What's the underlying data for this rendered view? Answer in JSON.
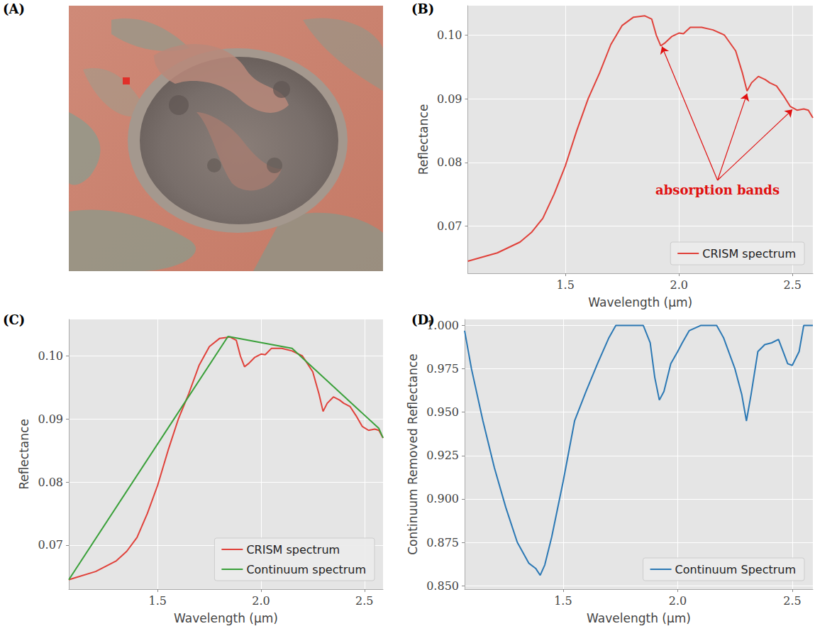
{
  "chart_data": [
    {
      "type": "image",
      "panel_label": "(A)"
    },
    {
      "type": "line",
      "panel_label": "(B)",
      "xlabel": "Wavelength (μm)",
      "ylabel": "Reflectance",
      "xlim": [
        1.07,
        2.59
      ],
      "ylim": [
        0.0626,
        0.1046
      ],
      "xticks": [
        1.5,
        {
          "value": 2.0,
          "label": "2.0"
        },
        2.5
      ],
      "yticks": [
        0.07,
        0.08,
        0.09,
        {
          "value": 0.1,
          "label": "0.10"
        }
      ],
      "grid": true,
      "legend": "lower right",
      "series": [
        {
          "name": "CRISM spectrum",
          "color": "#e0413a",
          "x": [
            1.07,
            1.1,
            1.2,
            1.3,
            1.35,
            1.4,
            1.45,
            1.5,
            1.55,
            1.6,
            1.65,
            1.7,
            1.75,
            1.8,
            1.85,
            1.88,
            1.9,
            1.92,
            1.94,
            1.97,
            2.0,
            2.02,
            2.05,
            2.1,
            2.15,
            2.2,
            2.25,
            2.28,
            2.3,
            2.32,
            2.35,
            2.38,
            2.4,
            2.43,
            2.46,
            2.49,
            2.52,
            2.55,
            2.57,
            2.59
          ],
          "values": [
            0.0645,
            0.0648,
            0.0658,
            0.0675,
            0.069,
            0.0712,
            0.075,
            0.0795,
            0.085,
            0.09,
            0.094,
            0.0985,
            0.1015,
            0.1028,
            0.103,
            0.1025,
            0.1,
            0.0983,
            0.0988,
            0.0998,
            0.1003,
            0.1002,
            0.1012,
            0.1012,
            0.1008,
            0.1,
            0.0975,
            0.094,
            0.0912,
            0.0925,
            0.0935,
            0.093,
            0.0925,
            0.092,
            0.0905,
            0.0888,
            0.0882,
            0.0884,
            0.0882,
            0.087
          ]
        }
      ],
      "annotations": [
        {
          "text": "absorption bands",
          "color": "#e01010",
          "x": 2.17,
          "y": 0.0757,
          "arrow_from": [
            2.17,
            0.0772
          ],
          "arrows_to": [
            [
              1.925,
              0.0982
            ],
            [
              2.3,
              0.0908
            ],
            [
              2.5,
              0.0883
            ]
          ]
        }
      ]
    },
    {
      "type": "line",
      "panel_label": "(C)",
      "xlabel": "Wavelength (μm)",
      "ylabel": "Reflectance",
      "xlim": [
        1.07,
        2.59
      ],
      "ylim": [
        0.063,
        0.1058
      ],
      "xticks": [
        1.5,
        {
          "value": 2.0,
          "label": "2.0"
        },
        2.5
      ],
      "yticks": [
        0.07,
        0.08,
        0.09,
        {
          "value": 0.1,
          "label": "0.10"
        }
      ],
      "grid": true,
      "legend": "lower right",
      "series": [
        {
          "name": "CRISM spectrum",
          "color": "#e0413a",
          "x": [
            1.07,
            1.1,
            1.2,
            1.3,
            1.35,
            1.4,
            1.45,
            1.5,
            1.55,
            1.6,
            1.65,
            1.7,
            1.75,
            1.8,
            1.85,
            1.88,
            1.9,
            1.92,
            1.94,
            1.97,
            2.0,
            2.02,
            2.05,
            2.1,
            2.15,
            2.2,
            2.25,
            2.28,
            2.3,
            2.32,
            2.35,
            2.38,
            2.4,
            2.43,
            2.46,
            2.49,
            2.52,
            2.55,
            2.57,
            2.59
          ],
          "values": [
            0.0645,
            0.0648,
            0.0658,
            0.0675,
            0.069,
            0.0712,
            0.075,
            0.0795,
            0.085,
            0.09,
            0.094,
            0.0985,
            0.1015,
            0.1028,
            0.103,
            0.1025,
            0.1,
            0.0983,
            0.0988,
            0.0998,
            0.1003,
            0.1002,
            0.1012,
            0.1012,
            0.1008,
            0.1,
            0.0975,
            0.094,
            0.0912,
            0.0925,
            0.0935,
            0.093,
            0.0925,
            0.092,
            0.0905,
            0.0888,
            0.0882,
            0.0884,
            0.0882,
            0.087
          ]
        },
        {
          "name": "Continuum spectrum",
          "color": "#3aa03a",
          "x": [
            1.07,
            1.84,
            2.15,
            2.57,
            2.59
          ],
          "values": [
            0.0645,
            0.1031,
            0.1012,
            0.0885,
            0.087
          ]
        }
      ]
    },
    {
      "type": "line",
      "panel_label": "(D)",
      "xlabel": "Wavelength (μm)",
      "ylabel": "Continuum Removed Reflectance",
      "xlim": [
        1.07,
        2.59
      ],
      "ylim": [
        0.848,
        1.0035
      ],
      "xticks": [
        1.5,
        {
          "value": 2.0,
          "label": "2.0"
        },
        2.5
      ],
      "yticks": [
        {
          "value": 0.85,
          "label": "0.850"
        },
        {
          "value": 0.875,
          "label": "0.875"
        },
        {
          "value": 0.9,
          "label": "0.900"
        },
        {
          "value": 0.925,
          "label": "0.925"
        },
        {
          "value": 0.95,
          "label": "0.950"
        },
        {
          "value": 0.975,
          "label": "0.975"
        },
        {
          "value": 1.0,
          "label": "1.000"
        }
      ],
      "grid": true,
      "legend": "lower right",
      "series": [
        {
          "name": "Continuum Spectrum",
          "color": "#2b78b4",
          "x": [
            1.07,
            1.1,
            1.15,
            1.2,
            1.25,
            1.3,
            1.35,
            1.38,
            1.4,
            1.42,
            1.45,
            1.5,
            1.55,
            1.6,
            1.65,
            1.7,
            1.73,
            1.85,
            1.88,
            1.9,
            1.92,
            1.94,
            1.97,
            2.0,
            2.02,
            2.05,
            2.1,
            2.17,
            2.2,
            2.25,
            2.28,
            2.3,
            2.32,
            2.35,
            2.38,
            2.41,
            2.44,
            2.46,
            2.48,
            2.5,
            2.53,
            2.55,
            2.59
          ],
          "values": [
            0.997,
            0.975,
            0.945,
            0.918,
            0.895,
            0.875,
            0.863,
            0.86,
            0.856,
            0.862,
            0.878,
            0.91,
            0.945,
            0.962,
            0.978,
            0.993,
            1.0,
            1.0,
            0.99,
            0.97,
            0.957,
            0.962,
            0.978,
            0.985,
            0.99,
            0.997,
            1.0,
            1.0,
            0.993,
            0.975,
            0.96,
            0.945,
            0.96,
            0.985,
            0.989,
            0.99,
            0.992,
            0.985,
            0.978,
            0.977,
            0.985,
            1.0,
            1.0
          ]
        }
      ]
    }
  ]
}
